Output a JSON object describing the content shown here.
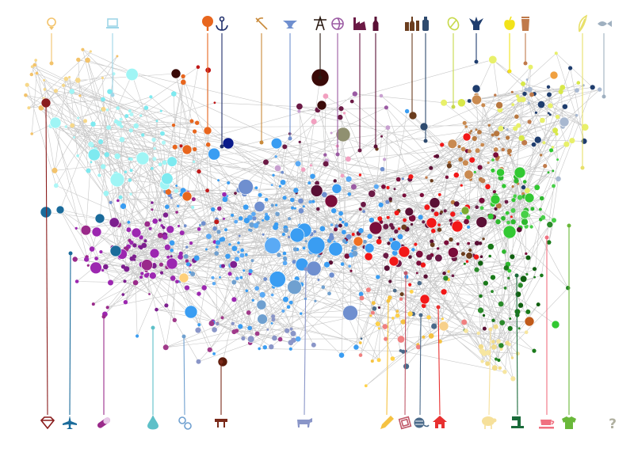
{
  "diagram": {
    "type": "network",
    "background": "#ffffff",
    "edge_color": "#9a9a9a",
    "unknown_category_label": "?",
    "legend_top": [
      {
        "icon": "ring-icon",
        "color": "#f3c36b"
      },
      {
        "icon": "laptop-icon",
        "color": "#9fd6e8"
      },
      {
        "icon": "tree-icon",
        "color": "#e8661e"
      },
      {
        "icon": "anchor-icon",
        "color": "#1f2f6b"
      },
      {
        "icon": "pickaxe-icon",
        "color": "#c98a3a"
      },
      {
        "icon": "anvil-icon",
        "color": "#6f8fcf"
      },
      {
        "icon": "oil-derrick-icon",
        "color": "#2a1a12"
      },
      {
        "icon": "globe-icon",
        "color": "#9b5ba3"
      },
      {
        "icon": "factory-icon",
        "color": "#6b1a45"
      },
      {
        "icon": "bottle-icon",
        "color": "#5a1035"
      },
      {
        "icon": "wine-bottles-icon",
        "color": "#6b3d1e"
      },
      {
        "icon": "jar-icon",
        "color": "#2e4a6e"
      },
      {
        "icon": "leaf-disc-icon",
        "color": "#c7d94a"
      },
      {
        "icon": "ship-icon",
        "color": "#1f3d6e"
      },
      {
        "icon": "apple-icon",
        "color": "#f2e31a"
      },
      {
        "icon": "cup-icon",
        "color": "#c07a4a"
      },
      {
        "icon": "feather-icon",
        "color": "#e8e06a"
      },
      {
        "icon": "fish-icon",
        "color": "#9fb0c0"
      }
    ],
    "legend_bottom": [
      {
        "icon": "gem-icon",
        "color": "#8a1c1c"
      },
      {
        "icon": "airplane-icon",
        "color": "#1a6b9b"
      },
      {
        "icon": "pill-icon",
        "color": "#9a2a8a"
      },
      {
        "icon": "water-drop-icon",
        "color": "#5ec0c8"
      },
      {
        "icon": "gears-icon",
        "color": "#6fa0d0"
      },
      {
        "icon": "furniture-icon",
        "color": "#7a2a1a"
      },
      {
        "icon": "cow-icon",
        "color": "#8a96c8"
      },
      {
        "icon": "pencil-icon",
        "color": "#f5c242"
      },
      {
        "icon": "picture-frame-icon",
        "color": "#c05a6a"
      },
      {
        "icon": "yarn-icon",
        "color": "#4a6a8a"
      },
      {
        "icon": "house-icon",
        "color": "#e83030"
      },
      {
        "icon": "sheep-icon",
        "color": "#f6e09a"
      },
      {
        "icon": "sewing-machine-icon",
        "color": "#1a6b3a"
      },
      {
        "icon": "teacup-icon",
        "color": "#f07080"
      },
      {
        "icon": "shirt-icon",
        "color": "#6ab83a"
      },
      {
        "icon": "unknown-icon",
        "color": "#b0b0a0"
      }
    ]
  }
}
